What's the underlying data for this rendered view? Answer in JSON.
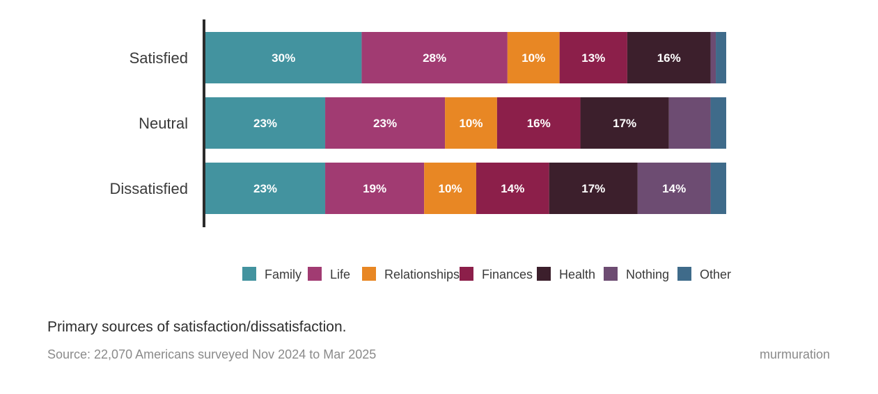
{
  "chart_data": {
    "type": "bar",
    "orientation": "horizontal",
    "stacked": true,
    "categories": [
      "Satisfied",
      "Neutral",
      "Dissatisfied"
    ],
    "series": [
      {
        "name": "Family",
        "color": "#43939f",
        "values": [
          30,
          23,
          23
        ],
        "labels": [
          "30%",
          "23%",
          "23%"
        ]
      },
      {
        "name": "Life",
        "color": "#a13b72",
        "values": [
          28,
          23,
          19
        ],
        "labels": [
          "28%",
          "23%",
          "19%"
        ]
      },
      {
        "name": "Relationships",
        "color": "#e88724",
        "values": [
          10,
          10,
          10
        ],
        "labels": [
          "10%",
          "10%",
          "10%"
        ]
      },
      {
        "name": "Finances",
        "color": "#8c1f4a",
        "values": [
          13,
          16,
          14
        ],
        "labels": [
          "13%",
          "16%",
          "14%"
        ]
      },
      {
        "name": "Health",
        "color": "#3c1f2c",
        "values": [
          16,
          17,
          17
        ],
        "labels": [
          "16%",
          "17%",
          "17%"
        ]
      },
      {
        "name": "Nothing",
        "color": "#6d4c72",
        "values": [
          1,
          8,
          14
        ],
        "labels": [
          "",
          "",
          "14%"
        ]
      },
      {
        "name": "Other",
        "color": "#3f6b8a",
        "values": [
          2,
          3,
          3
        ],
        "labels": [
          "",
          "",
          ""
        ]
      }
    ],
    "xlim": [
      0,
      100
    ],
    "legend_position": "bottom",
    "grid": false
  },
  "caption": "Primary sources of satisfaction/dissatisfaction.",
  "source": "Source: 22,070 Americans surveyed Nov 2024 to Mar 2025",
  "brand": "murmuration"
}
